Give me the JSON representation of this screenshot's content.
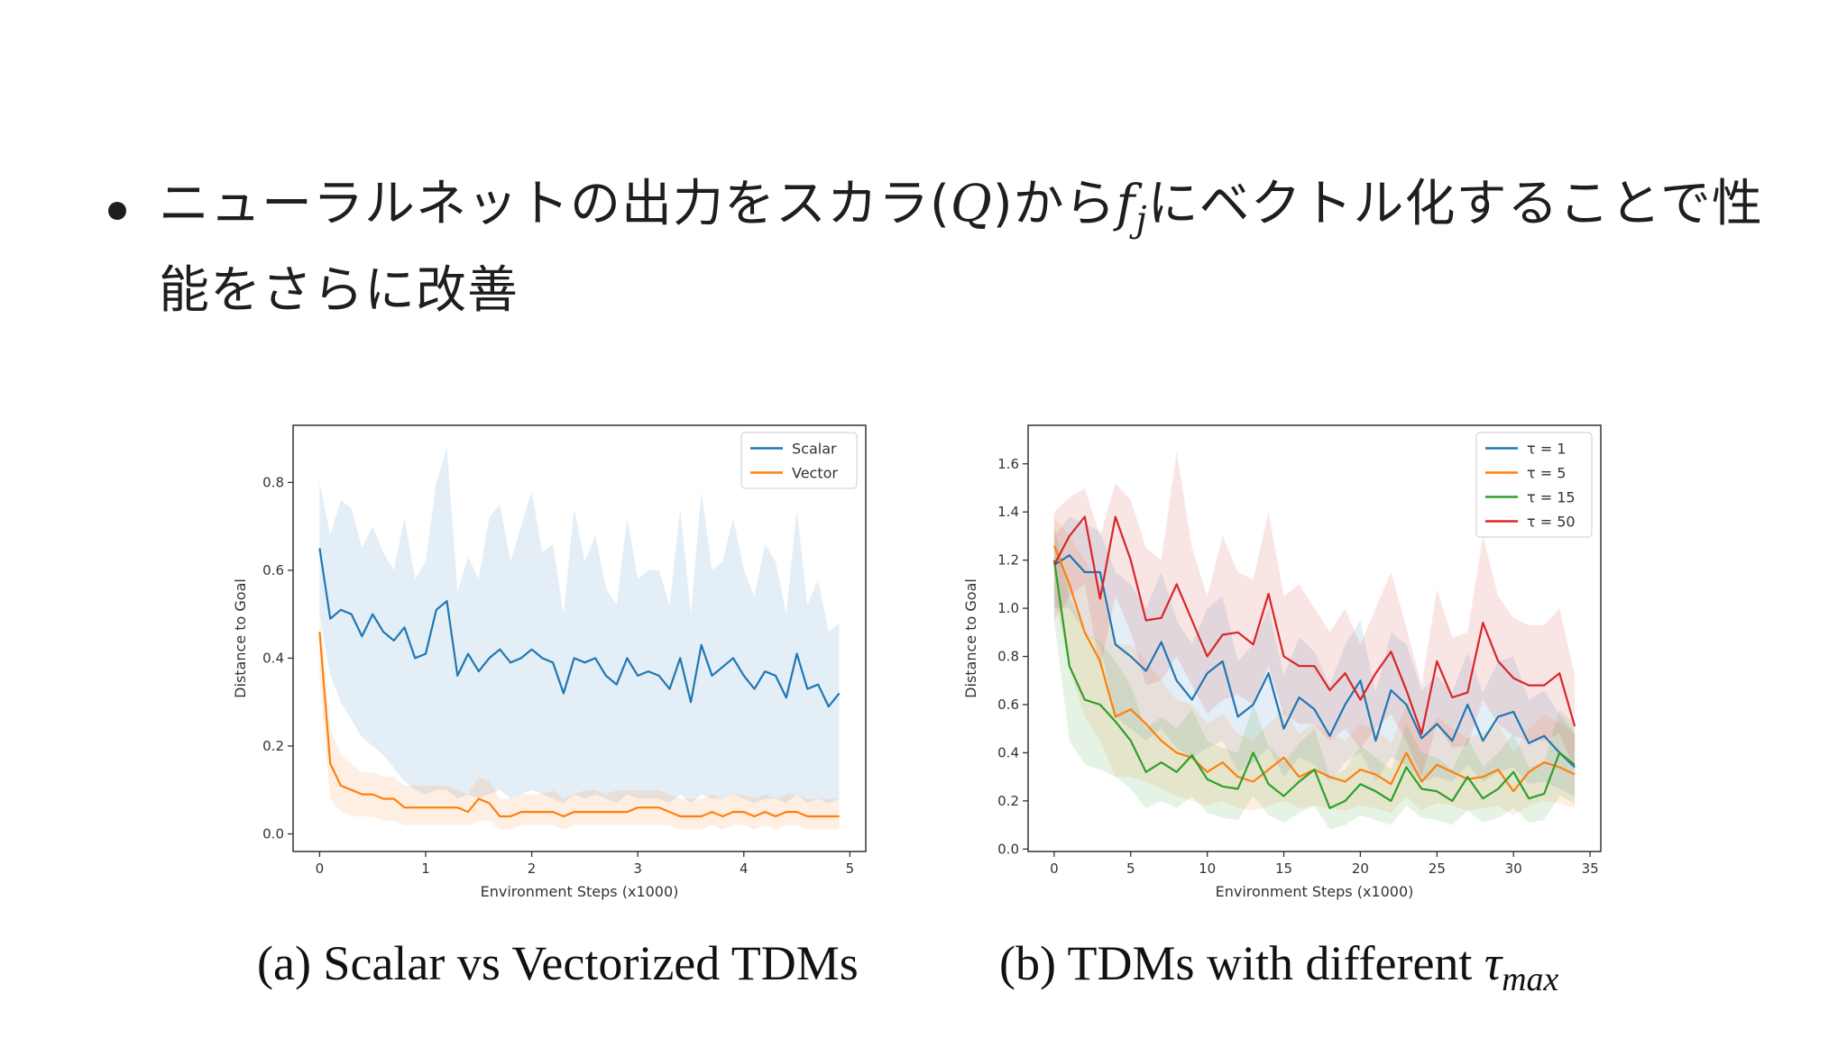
{
  "slide": {
    "bullet_before": "ニューラルネットの出力をスカラ(",
    "bullet_q": "Q",
    "bullet_mid": ")から",
    "bullet_f": "f",
    "bullet_j": "j",
    "bullet_after": "にベクトル化することで性能をさらに改善"
  },
  "captions": {
    "a": "(a) Scalar vs Vectorized TDMs",
    "b_prefix": "(b) TDMs with different ",
    "b_tau": "τ",
    "b_sub": "max"
  },
  "chart_data": [
    {
      "type": "line",
      "xlabel": "Environment Steps (x1000)",
      "ylabel": "Distance to Goal",
      "xlim": [
        -0.25,
        5.15
      ],
      "ylim": [
        -0.04,
        0.93
      ],
      "xticks": [
        0,
        1,
        2,
        3,
        4,
        5
      ],
      "yticks": [
        0.0,
        0.2,
        0.4,
        0.6,
        0.8
      ],
      "ytick_labels": [
        "0.0",
        "0.2",
        "0.4",
        "0.6",
        "0.8"
      ],
      "legend_position": "top-right",
      "series": [
        {
          "name": "Scalar",
          "color": "#1f77b4",
          "x": [
            0,
            0.1,
            0.2,
            0.3,
            0.4,
            0.5,
            0.6,
            0.7,
            0.8,
            0.9,
            1.0,
            1.1,
            1.2,
            1.3,
            1.4,
            1.5,
            1.6,
            1.7,
            1.8,
            1.9,
            2.0,
            2.1,
            2.2,
            2.3,
            2.4,
            2.5,
            2.6,
            2.7,
            2.8,
            2.9,
            3.0,
            3.1,
            3.2,
            3.3,
            3.4,
            3.5,
            3.6,
            3.7,
            3.8,
            3.9,
            4.0,
            4.1,
            4.2,
            4.3,
            4.4,
            4.5,
            4.6,
            4.7,
            4.8,
            4.9
          ],
          "y": [
            0.65,
            0.49,
            0.51,
            0.5,
            0.45,
            0.5,
            0.46,
            0.44,
            0.47,
            0.4,
            0.41,
            0.51,
            0.53,
            0.36,
            0.41,
            0.37,
            0.4,
            0.42,
            0.39,
            0.4,
            0.42,
            0.4,
            0.39,
            0.32,
            0.4,
            0.39,
            0.4,
            0.36,
            0.34,
            0.4,
            0.36,
            0.37,
            0.36,
            0.33,
            0.4,
            0.3,
            0.43,
            0.36,
            0.38,
            0.4,
            0.36,
            0.33,
            0.37,
            0.36,
            0.31,
            0.41,
            0.33,
            0.34,
            0.29,
            0.32
          ],
          "band_lower": [
            0.5,
            0.36,
            0.3,
            0.26,
            0.22,
            0.2,
            0.18,
            0.15,
            0.12,
            0.1,
            0.09,
            0.1,
            0.1,
            0.08,
            0.09,
            0.08,
            0.09,
            0.1,
            0.08,
            0.09,
            0.1,
            0.09,
            0.08,
            0.07,
            0.09,
            0.08,
            0.09,
            0.08,
            0.07,
            0.09,
            0.08,
            0.08,
            0.08,
            0.07,
            0.09,
            0.07,
            0.09,
            0.08,
            0.08,
            0.09,
            0.08,
            0.07,
            0.08,
            0.08,
            0.07,
            0.09,
            0.07,
            0.08,
            0.07,
            0.08
          ],
          "band_upper": [
            0.8,
            0.68,
            0.76,
            0.74,
            0.65,
            0.7,
            0.64,
            0.6,
            0.72,
            0.58,
            0.62,
            0.8,
            0.88,
            0.55,
            0.63,
            0.58,
            0.72,
            0.75,
            0.62,
            0.7,
            0.78,
            0.64,
            0.66,
            0.5,
            0.74,
            0.62,
            0.68,
            0.56,
            0.52,
            0.72,
            0.58,
            0.6,
            0.6,
            0.52,
            0.74,
            0.5,
            0.78,
            0.6,
            0.62,
            0.72,
            0.6,
            0.54,
            0.66,
            0.62,
            0.5,
            0.74,
            0.52,
            0.58,
            0.46,
            0.48
          ]
        },
        {
          "name": "Vector",
          "color": "#ff7f0e",
          "x": [
            0,
            0.1,
            0.2,
            0.3,
            0.4,
            0.5,
            0.6,
            0.7,
            0.8,
            0.9,
            1.0,
            1.1,
            1.2,
            1.3,
            1.4,
            1.5,
            1.6,
            1.7,
            1.8,
            1.9,
            2.0,
            2.1,
            2.2,
            2.3,
            2.4,
            2.5,
            2.6,
            2.7,
            2.8,
            2.9,
            3.0,
            3.1,
            3.2,
            3.3,
            3.4,
            3.5,
            3.6,
            3.7,
            3.8,
            3.9,
            4.0,
            4.1,
            4.2,
            4.3,
            4.4,
            4.5,
            4.6,
            4.7,
            4.8,
            4.9
          ],
          "y": [
            0.46,
            0.16,
            0.11,
            0.1,
            0.09,
            0.09,
            0.08,
            0.08,
            0.06,
            0.06,
            0.06,
            0.06,
            0.06,
            0.06,
            0.05,
            0.08,
            0.07,
            0.04,
            0.04,
            0.05,
            0.05,
            0.05,
            0.05,
            0.04,
            0.05,
            0.05,
            0.05,
            0.05,
            0.05,
            0.05,
            0.06,
            0.06,
            0.06,
            0.05,
            0.04,
            0.04,
            0.04,
            0.05,
            0.04,
            0.05,
            0.05,
            0.04,
            0.05,
            0.04,
            0.05,
            0.05,
            0.04,
            0.04,
            0.04,
            0.04
          ],
          "band_lower": [
            0.35,
            0.08,
            0.05,
            0.04,
            0.04,
            0.04,
            0.03,
            0.03,
            0.02,
            0.02,
            0.02,
            0.02,
            0.02,
            0.02,
            0.02,
            0.03,
            0.03,
            0.01,
            0.01,
            0.02,
            0.02,
            0.02,
            0.02,
            0.01,
            0.02,
            0.02,
            0.02,
            0.02,
            0.02,
            0.02,
            0.02,
            0.02,
            0.02,
            0.02,
            0.01,
            0.01,
            0.01,
            0.02,
            0.01,
            0.02,
            0.02,
            0.01,
            0.02,
            0.01,
            0.02,
            0.02,
            0.01,
            0.01,
            0.01,
            0.01
          ],
          "band_upper": [
            0.5,
            0.24,
            0.18,
            0.16,
            0.14,
            0.14,
            0.13,
            0.13,
            0.11,
            0.11,
            0.11,
            0.11,
            0.11,
            0.1,
            0.09,
            0.13,
            0.12,
            0.08,
            0.08,
            0.09,
            0.09,
            0.09,
            0.1,
            0.08,
            0.09,
            0.1,
            0.1,
            0.09,
            0.1,
            0.1,
            0.1,
            0.1,
            0.1,
            0.09,
            0.08,
            0.08,
            0.08,
            0.09,
            0.08,
            0.09,
            0.09,
            0.08,
            0.09,
            0.08,
            0.09,
            0.09,
            0.08,
            0.08,
            0.08,
            0.08
          ]
        }
      ]
    },
    {
      "type": "line",
      "xlabel": "Environment Steps (x1000)",
      "ylabel": "Distance to Goal",
      "xlim": [
        -1.7,
        35.7
      ],
      "ylim": [
        -0.01,
        1.76
      ],
      "xticks": [
        0,
        5,
        10,
        15,
        20,
        25,
        30,
        35
      ],
      "yticks": [
        0.0,
        0.2,
        0.4,
        0.6,
        0.8,
        1.0,
        1.2,
        1.4,
        1.6
      ],
      "ytick_labels": [
        "0.0",
        "0.2",
        "0.4",
        "0.6",
        "0.8",
        "1.0",
        "1.2",
        "1.4",
        "1.6"
      ],
      "legend_position": "top-right",
      "series": [
        {
          "name": "τ = 1",
          "color": "#1f77b4",
          "x": [
            0,
            1,
            2,
            3,
            4,
            5,
            6,
            7,
            8,
            9,
            10,
            11,
            12,
            13,
            14,
            15,
            16,
            17,
            18,
            19,
            20,
            21,
            22,
            23,
            24,
            25,
            26,
            27,
            28,
            29,
            30,
            31,
            32,
            33,
            34
          ],
          "y": [
            1.18,
            1.22,
            1.15,
            1.15,
            0.85,
            0.8,
            0.74,
            0.86,
            0.7,
            0.62,
            0.73,
            0.78,
            0.55,
            0.6,
            0.73,
            0.5,
            0.63,
            0.58,
            0.47,
            0.6,
            0.7,
            0.45,
            0.66,
            0.6,
            0.46,
            0.52,
            0.45,
            0.6,
            0.45,
            0.55,
            0.57,
            0.44,
            0.47,
            0.4,
            0.34
          ],
          "band_lower": [
            1.0,
            1.0,
            0.9,
            0.85,
            0.55,
            0.5,
            0.45,
            0.5,
            0.42,
            0.38,
            0.42,
            0.45,
            0.32,
            0.36,
            0.42,
            0.3,
            0.38,
            0.35,
            0.28,
            0.36,
            0.4,
            0.28,
            0.38,
            0.35,
            0.28,
            0.3,
            0.28,
            0.35,
            0.28,
            0.32,
            0.34,
            0.27,
            0.28,
            0.25,
            0.22
          ],
          "band_upper": [
            1.3,
            1.38,
            1.35,
            1.32,
            1.15,
            1.1,
            1.0,
            1.15,
            0.95,
            0.85,
            1.0,
            1.05,
            0.78,
            0.85,
            1.0,
            0.72,
            0.88,
            0.82,
            0.68,
            0.85,
            0.95,
            0.65,
            0.9,
            0.85,
            0.66,
            0.72,
            0.65,
            0.82,
            0.65,
            0.78,
            0.8,
            0.62,
            0.66,
            0.56,
            0.48
          ]
        },
        {
          "name": "τ = 5",
          "color": "#ff7f0e",
          "x": [
            0,
            1,
            2,
            3,
            4,
            5,
            6,
            7,
            8,
            9,
            10,
            11,
            12,
            13,
            14,
            15,
            16,
            17,
            18,
            19,
            20,
            21,
            22,
            23,
            24,
            25,
            26,
            27,
            28,
            29,
            30,
            31,
            32,
            33,
            34
          ],
          "y": [
            1.26,
            1.1,
            0.9,
            0.78,
            0.55,
            0.58,
            0.52,
            0.45,
            0.4,
            0.38,
            0.32,
            0.36,
            0.3,
            0.28,
            0.33,
            0.38,
            0.3,
            0.33,
            0.3,
            0.28,
            0.33,
            0.31,
            0.27,
            0.4,
            0.28,
            0.35,
            0.32,
            0.29,
            0.3,
            0.33,
            0.24,
            0.32,
            0.36,
            0.34,
            0.31
          ],
          "band_lower": [
            1.05,
            0.75,
            0.55,
            0.45,
            0.3,
            0.3,
            0.28,
            0.25,
            0.22,
            0.2,
            0.18,
            0.2,
            0.17,
            0.16,
            0.18,
            0.2,
            0.17,
            0.18,
            0.17,
            0.16,
            0.18,
            0.17,
            0.15,
            0.22,
            0.16,
            0.19,
            0.18,
            0.16,
            0.17,
            0.18,
            0.14,
            0.18,
            0.2,
            0.19,
            0.17
          ],
          "band_upper": [
            1.38,
            1.3,
            1.2,
            1.1,
            0.85,
            0.85,
            0.78,
            0.7,
            0.62,
            0.6,
            0.52,
            0.56,
            0.48,
            0.45,
            0.52,
            0.58,
            0.48,
            0.52,
            0.48,
            0.45,
            0.52,
            0.5,
            0.44,
            0.6,
            0.45,
            0.55,
            0.5,
            0.46,
            0.48,
            0.52,
            0.4,
            0.5,
            0.56,
            0.52,
            0.48
          ]
        },
        {
          "name": "τ = 15",
          "color": "#2ca02c",
          "x": [
            0,
            1,
            2,
            3,
            4,
            5,
            6,
            7,
            8,
            9,
            10,
            11,
            12,
            13,
            14,
            15,
            16,
            17,
            18,
            19,
            20,
            21,
            22,
            23,
            24,
            25,
            26,
            27,
            28,
            29,
            30,
            31,
            32,
            33,
            34
          ],
          "y": [
            1.2,
            0.76,
            0.62,
            0.6,
            0.53,
            0.45,
            0.32,
            0.36,
            0.32,
            0.39,
            0.29,
            0.26,
            0.25,
            0.4,
            0.27,
            0.22,
            0.28,
            0.33,
            0.17,
            0.2,
            0.27,
            0.24,
            0.2,
            0.34,
            0.25,
            0.24,
            0.2,
            0.3,
            0.21,
            0.25,
            0.32,
            0.21,
            0.23,
            0.4,
            0.35
          ],
          "band_lower": [
            0.95,
            0.45,
            0.35,
            0.33,
            0.3,
            0.25,
            0.17,
            0.2,
            0.17,
            0.22,
            0.15,
            0.13,
            0.12,
            0.22,
            0.14,
            0.11,
            0.15,
            0.18,
            0.08,
            0.1,
            0.14,
            0.12,
            0.1,
            0.18,
            0.13,
            0.12,
            0.1,
            0.16,
            0.11,
            0.13,
            0.17,
            0.11,
            0.12,
            0.22,
            0.19
          ],
          "band_upper": [
            1.35,
            1.05,
            0.9,
            0.86,
            0.78,
            0.68,
            0.5,
            0.55,
            0.5,
            0.58,
            0.45,
            0.42,
            0.4,
            0.6,
            0.43,
            0.36,
            0.44,
            0.5,
            0.3,
            0.33,
            0.43,
            0.38,
            0.33,
            0.52,
            0.4,
            0.38,
            0.33,
            0.46,
            0.34,
            0.4,
            0.48,
            0.34,
            0.36,
            0.58,
            0.52
          ]
        },
        {
          "name": "τ = 50",
          "color": "#d62728",
          "x": [
            0,
            1,
            2,
            3,
            4,
            5,
            6,
            7,
            8,
            9,
            10,
            11,
            12,
            13,
            14,
            15,
            16,
            17,
            18,
            19,
            20,
            21,
            22,
            23,
            24,
            25,
            26,
            27,
            28,
            29,
            30,
            31,
            32,
            33,
            34
          ],
          "y": [
            1.18,
            1.3,
            1.38,
            1.04,
            1.38,
            1.2,
            0.95,
            0.96,
            1.1,
            0.95,
            0.8,
            0.89,
            0.9,
            0.85,
            1.06,
            0.8,
            0.76,
            0.76,
            0.66,
            0.73,
            0.62,
            0.73,
            0.82,
            0.66,
            0.48,
            0.78,
            0.63,
            0.65,
            0.94,
            0.78,
            0.71,
            0.68,
            0.68,
            0.73,
            0.51
          ],
          "band_lower": [
            0.95,
            1.05,
            1.1,
            0.75,
            1.05,
            0.9,
            0.68,
            0.7,
            0.8,
            0.68,
            0.56,
            0.62,
            0.64,
            0.6,
            0.76,
            0.56,
            0.52,
            0.52,
            0.45,
            0.5,
            0.42,
            0.5,
            0.56,
            0.45,
            0.3,
            0.52,
            0.42,
            0.43,
            0.62,
            0.52,
            0.47,
            0.45,
            0.45,
            0.48,
            0.33
          ],
          "band_upper": [
            1.4,
            1.46,
            1.5,
            1.3,
            1.52,
            1.45,
            1.25,
            1.2,
            1.65,
            1.25,
            1.05,
            1.3,
            1.15,
            1.12,
            1.4,
            1.05,
            1.1,
            1.0,
            0.9,
            1.0,
            0.85,
            1.0,
            1.15,
            0.92,
            0.68,
            1.08,
            0.88,
            0.9,
            1.3,
            1.05,
            0.96,
            0.93,
            0.93,
            1.0,
            0.72
          ]
        }
      ]
    }
  ]
}
